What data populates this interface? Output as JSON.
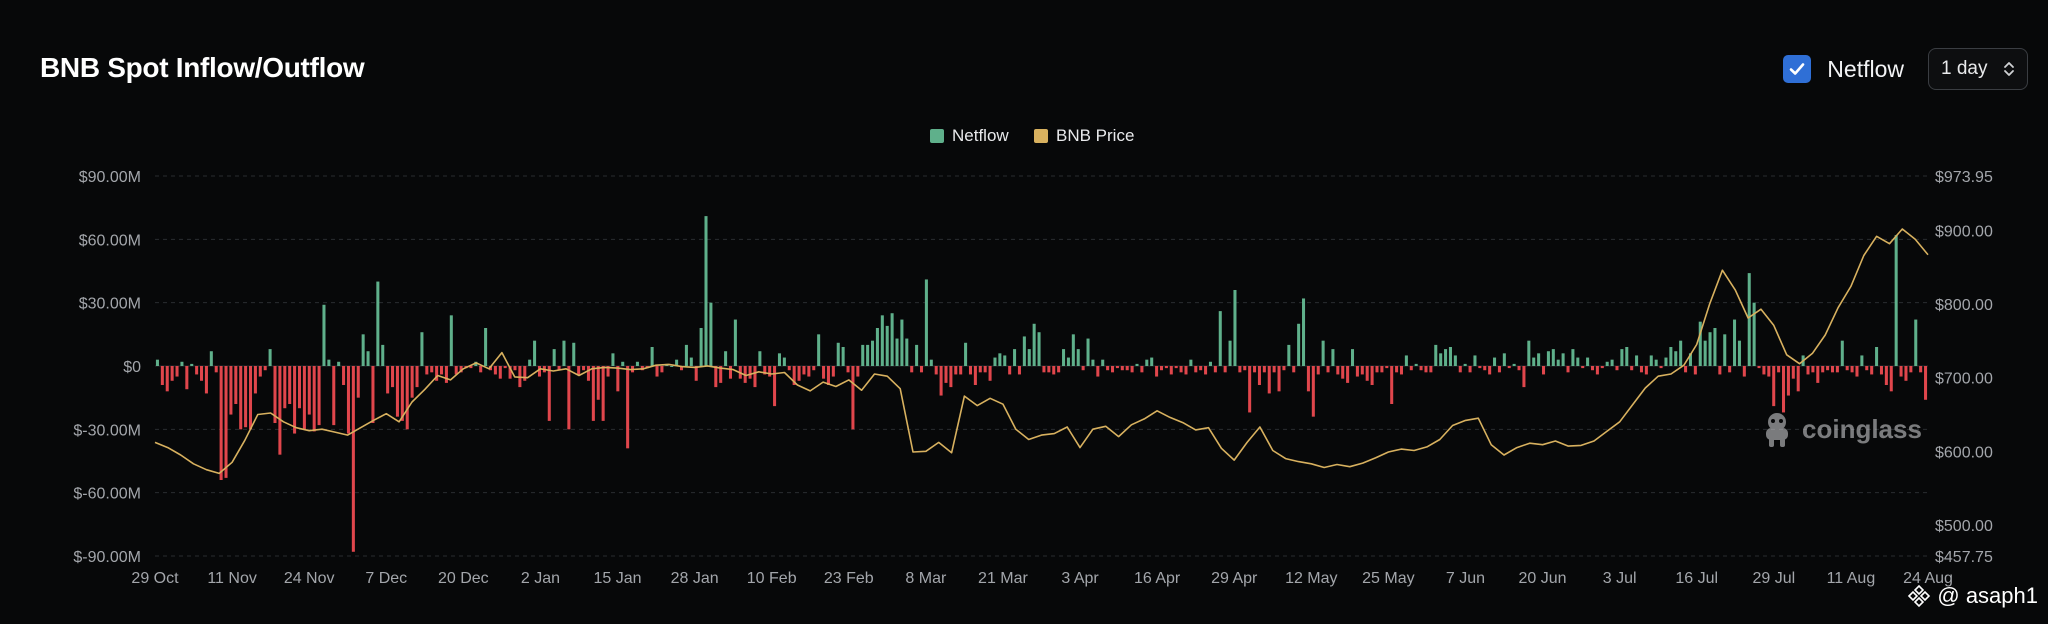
{
  "header": {
    "title": "BNB Spot Inflow/Outflow"
  },
  "controls": {
    "netflow_toggle_label": "Netflow",
    "netflow_checked": true,
    "period_value": "1 day"
  },
  "watermark": "coinglass",
  "credit": "@ asaph1",
  "colors": {
    "positive": "#5fb08b",
    "negative": "#e0464c",
    "price": "#d8b15f",
    "grid": "#2a2c30",
    "axis_text": "#a3a6ab"
  },
  "chart_data": {
    "type": "bar",
    "legend": [
      {
        "name": "Netflow",
        "color": "#5fb08b"
      },
      {
        "name": "BNB Price",
        "color": "#d8b15f"
      }
    ],
    "x_tick_labels": [
      "29 Oct",
      "11 Nov",
      "24 Nov",
      "7 Dec",
      "20 Dec",
      "2 Jan",
      "15 Jan",
      "28 Jan",
      "10 Feb",
      "23 Feb",
      "8 Mar",
      "21 Mar",
      "3 Apr",
      "16 Apr",
      "29 Apr",
      "12 May",
      "25 May",
      "7 Jun",
      "20 Jun",
      "3 Jul",
      "16 Jul",
      "29 Jul",
      "11 Aug",
      "24 Aug"
    ],
    "y_left": {
      "min": -90,
      "max": 90,
      "unit": "$M",
      "tick_labels": [
        "$90.00M",
        "$60.00M",
        "$30.00M",
        "$0",
        "$-30.00M",
        "$-60.00M",
        "$-90.00M"
      ]
    },
    "y_right": {
      "min": 457.75,
      "max": 973.95,
      "ticks": [
        973.95,
        900,
        800,
        700,
        600,
        500,
        457.75
      ],
      "tick_labels": [
        "$973.95",
        "$900.00",
        "$800.00",
        "$700.00",
        "$600.00",
        "$500.00",
        "$457.75"
      ]
    },
    "series": [
      {
        "name": "Netflow",
        "values": [
          3,
          -9,
          -12,
          -7,
          -5,
          2,
          -11,
          1,
          -4,
          -7,
          -13,
          7,
          -3,
          -54,
          -53,
          -23,
          -18,
          -30,
          -29,
          -30,
          -13,
          -5,
          -2,
          8,
          -27,
          -42,
          -20,
          -18,
          -32,
          -20,
          -30,
          -23,
          -31,
          -28,
          29,
          3,
          -28,
          2,
          -9,
          -32,
          -88,
          -15,
          15,
          7,
          -27,
          40,
          10,
          -13,
          -10,
          -24,
          -26,
          -30,
          -15,
          -10,
          16,
          -4,
          -3,
          -7,
          -4,
          -8,
          24,
          -4,
          -3,
          -1,
          -1,
          2,
          -3,
          18,
          -2,
          -4,
          -6,
          -1,
          -6,
          -2,
          -10,
          -7,
          3,
          12,
          -5,
          -3,
          -26,
          8,
          -2,
          12,
          -30,
          11,
          -4,
          -2,
          -7,
          -26,
          -16,
          -26,
          -5,
          6,
          -12,
          2,
          -39,
          -3,
          2,
          -2,
          -1,
          9,
          -5,
          -3,
          1,
          0,
          3,
          -2,
          10,
          4,
          -7,
          18,
          71,
          30,
          -10,
          -8,
          7,
          -6,
          22,
          -6,
          -8,
          -6,
          -10,
          7,
          -4,
          -5,
          -19,
          6,
          4,
          -2,
          -9,
          -7,
          -4,
          -5,
          -2,
          15,
          -6,
          -9,
          -5,
          11,
          9,
          -3,
          -30,
          -5,
          10,
          10,
          12,
          18,
          24,
          19,
          25,
          13,
          22,
          13,
          -3,
          10,
          -3,
          41,
          3,
          -4,
          -14,
          -8,
          -10,
          -4,
          -4,
          11,
          -4,
          -9,
          -3,
          -3,
          -7,
          4,
          6,
          5,
          -4,
          8,
          -4,
          14,
          8,
          20,
          16,
          -3,
          -3,
          -4,
          -3,
          8,
          4,
          15,
          8,
          -2,
          13,
          3,
          -5,
          3,
          -2,
          -3,
          -1,
          -2,
          -2,
          -3,
          1,
          -3,
          3,
          4,
          -5,
          -2,
          -1,
          -4,
          -1,
          -3,
          -4,
          3,
          -3,
          -2,
          -4,
          2,
          -3,
          26,
          -3,
          12,
          36,
          -3,
          -2,
          -22,
          -3,
          -9,
          -3,
          -13,
          -3,
          -12,
          -2,
          10,
          -3,
          20,
          32,
          -12,
          -24,
          -4,
          12,
          -3,
          8,
          -4,
          -6,
          -8,
          8,
          -5,
          -4,
          -7,
          -9,
          -3,
          -3,
          -1,
          -18,
          -3,
          -4,
          5,
          -2,
          1,
          -2,
          -3,
          -3,
          10,
          6,
          8,
          9,
          5,
          -3,
          1,
          -3,
          5,
          -1,
          -2,
          -4,
          4,
          -3,
          6,
          -1,
          1,
          -2,
          -10,
          12,
          4,
          6,
          -4,
          7,
          8,
          3,
          6,
          -3,
          8,
          4,
          -1,
          4,
          -2,
          -4,
          -1,
          2,
          3,
          -2,
          8,
          9,
          -2,
          5,
          -3,
          -4,
          5,
          3,
          -1,
          4,
          9,
          7,
          12,
          -3,
          6,
          -4,
          21,
          12,
          16,
          18,
          -4,
          15,
          -3,
          22,
          12,
          -5,
          44,
          30,
          -1,
          -4,
          -5,
          -19,
          -3,
          -22,
          -14,
          -6,
          -12,
          5,
          -4,
          -3,
          -8,
          -3,
          -2,
          -3,
          -3,
          12,
          -2,
          -3,
          -5,
          5,
          -2,
          -4,
          9,
          -4,
          -9,
          -12,
          62,
          -5,
          -7,
          -3,
          22,
          -3,
          -16
        ]
      },
      {
        "name": "BNB Price",
        "values": [
          612,
          605,
          595,
          583,
          575,
          570,
          585,
          615,
          650,
          652,
          640,
          632,
          628,
          630,
          626,
          622,
          632,
          642,
          651,
          640,
          667,
          684,
          703,
          697,
          712,
          720,
          712,
          734,
          701,
          700,
          712,
          709,
          712,
          703,
          712,
          714,
          713,
          711,
          712,
          717,
          718,
          715,
          714,
          716,
          713,
          711,
          703,
          708,
          705,
          707,
          690,
          682,
          694,
          688,
          697,
          683,
          705,
          702,
          685,
          599,
          600,
          612,
          598,
          675,
          662,
          672,
          664,
          630,
          616,
          622,
          624,
          633,
          605,
          630,
          634,
          620,
          636,
          644,
          655,
          646,
          639,
          629,
          632,
          604,
          588,
          612,
          633,
          601,
          590,
          586,
          583,
          578,
          582,
          579,
          584,
          591,
          599,
          603,
          601,
          606,
          616,
          635,
          642,
          645,
          609,
          595,
          605,
          611,
          609,
          614,
          607,
          608,
          614,
          627,
          640,
          663,
          686,
          702,
          705,
          717,
          745,
          800,
          846,
          819,
          781,
          793,
          771,
          731,
          719,
          733,
          758,
          795,
          824,
          866,
          892,
          882,
          902,
          888,
          867
        ]
      }
    ]
  }
}
